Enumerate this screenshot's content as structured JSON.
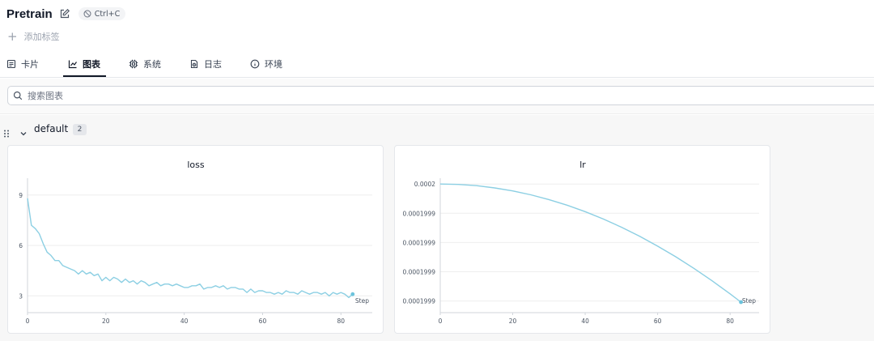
{
  "header": {
    "title": "Pretrain",
    "shortcut": "Ctrl+C",
    "add_tag": "添加标签"
  },
  "tabs": [
    {
      "label": "卡片",
      "icon": "card-icon",
      "active": false
    },
    {
      "label": "图表",
      "icon": "chart-icon",
      "active": true
    },
    {
      "label": "系统",
      "icon": "cpu-icon",
      "active": false
    },
    {
      "label": "日志",
      "icon": "log-icon",
      "active": false
    },
    {
      "label": "环境",
      "icon": "info-icon",
      "active": false
    }
  ],
  "search": {
    "placeholder": "搜索图表"
  },
  "group": {
    "name": "default",
    "count": "2"
  },
  "colors": {
    "line": "#8ccfe3",
    "active_tab": "#111827",
    "grid": "#eeeeee"
  },
  "chart_data": [
    {
      "type": "line",
      "title": "loss",
      "xlabel": "Step",
      "ylabel": "",
      "xlim": [
        0,
        88
      ],
      "ylim": [
        2,
        10
      ],
      "x_ticks": [
        "0",
        "20",
        "40",
        "60",
        "80"
      ],
      "y_ticks": [
        "3",
        "6",
        "9"
      ],
      "grid": true,
      "series": [
        {
          "x": [
            0,
            1,
            2,
            3,
            4,
            5,
            6,
            7,
            8,
            9,
            10,
            11,
            12,
            13,
            14,
            15,
            16,
            17,
            18,
            19,
            20,
            21,
            22,
            23,
            24,
            25,
            26,
            27,
            28,
            29,
            30,
            31,
            32,
            33,
            34,
            35,
            36,
            37,
            38,
            39,
            40,
            41,
            42,
            43,
            44,
            45,
            46,
            47,
            48,
            49,
            50,
            51,
            52,
            53,
            54,
            55,
            56,
            57,
            58,
            59,
            60,
            61,
            62,
            63,
            64,
            65,
            66,
            67,
            68,
            69,
            70,
            71,
            72,
            73,
            74,
            75,
            76,
            77,
            78,
            79,
            80,
            81,
            82,
            83
          ],
          "y": [
            8.8,
            7.2,
            7.0,
            6.7,
            6.1,
            5.6,
            5.4,
            5.1,
            5.1,
            4.8,
            4.7,
            4.6,
            4.5,
            4.3,
            4.5,
            4.3,
            4.4,
            4.2,
            4.3,
            3.9,
            4.1,
            3.9,
            4.1,
            4.0,
            3.8,
            4.0,
            3.8,
            3.9,
            3.7,
            3.9,
            3.8,
            3.6,
            3.7,
            3.8,
            3.6,
            3.7,
            3.7,
            3.6,
            3.7,
            3.6,
            3.5,
            3.5,
            3.6,
            3.6,
            3.7,
            3.4,
            3.5,
            3.5,
            3.6,
            3.5,
            3.6,
            3.4,
            3.5,
            3.5,
            3.4,
            3.4,
            3.2,
            3.4,
            3.2,
            3.3,
            3.3,
            3.2,
            3.2,
            3.1,
            3.2,
            3.1,
            3.3,
            3.2,
            3.2,
            3.1,
            3.3,
            3.2,
            3.1,
            3.2,
            3.2,
            3.1,
            3.2,
            3.0,
            3.2,
            3.1,
            3.2,
            3.1,
            2.9,
            3.1
          ]
        }
      ]
    },
    {
      "type": "line",
      "title": "lr",
      "xlabel": "Step",
      "ylabel": "",
      "xlim": [
        0,
        88
      ],
      "ylim": [
        -0.1,
        1.05
      ],
      "x_ticks": [
        "0",
        "20",
        "40",
        "60",
        "80"
      ],
      "y_ticks": [
        "0.0002",
        "0.0001999",
        "0.0001999",
        "0.0001999",
        "0.0001999"
      ],
      "grid": true,
      "series": [
        {
          "x": [
            0,
            5,
            10,
            15,
            20,
            25,
            30,
            35,
            40,
            45,
            50,
            55,
            60,
            65,
            70,
            75,
            80,
            83
          ],
          "y": [
            1.0,
            0.997,
            0.986,
            0.967,
            0.941,
            0.908,
            0.867,
            0.819,
            0.764,
            0.701,
            0.631,
            0.554,
            0.469,
            0.378,
            0.279,
            0.173,
            0.061,
            -0.01
          ]
        }
      ]
    }
  ]
}
